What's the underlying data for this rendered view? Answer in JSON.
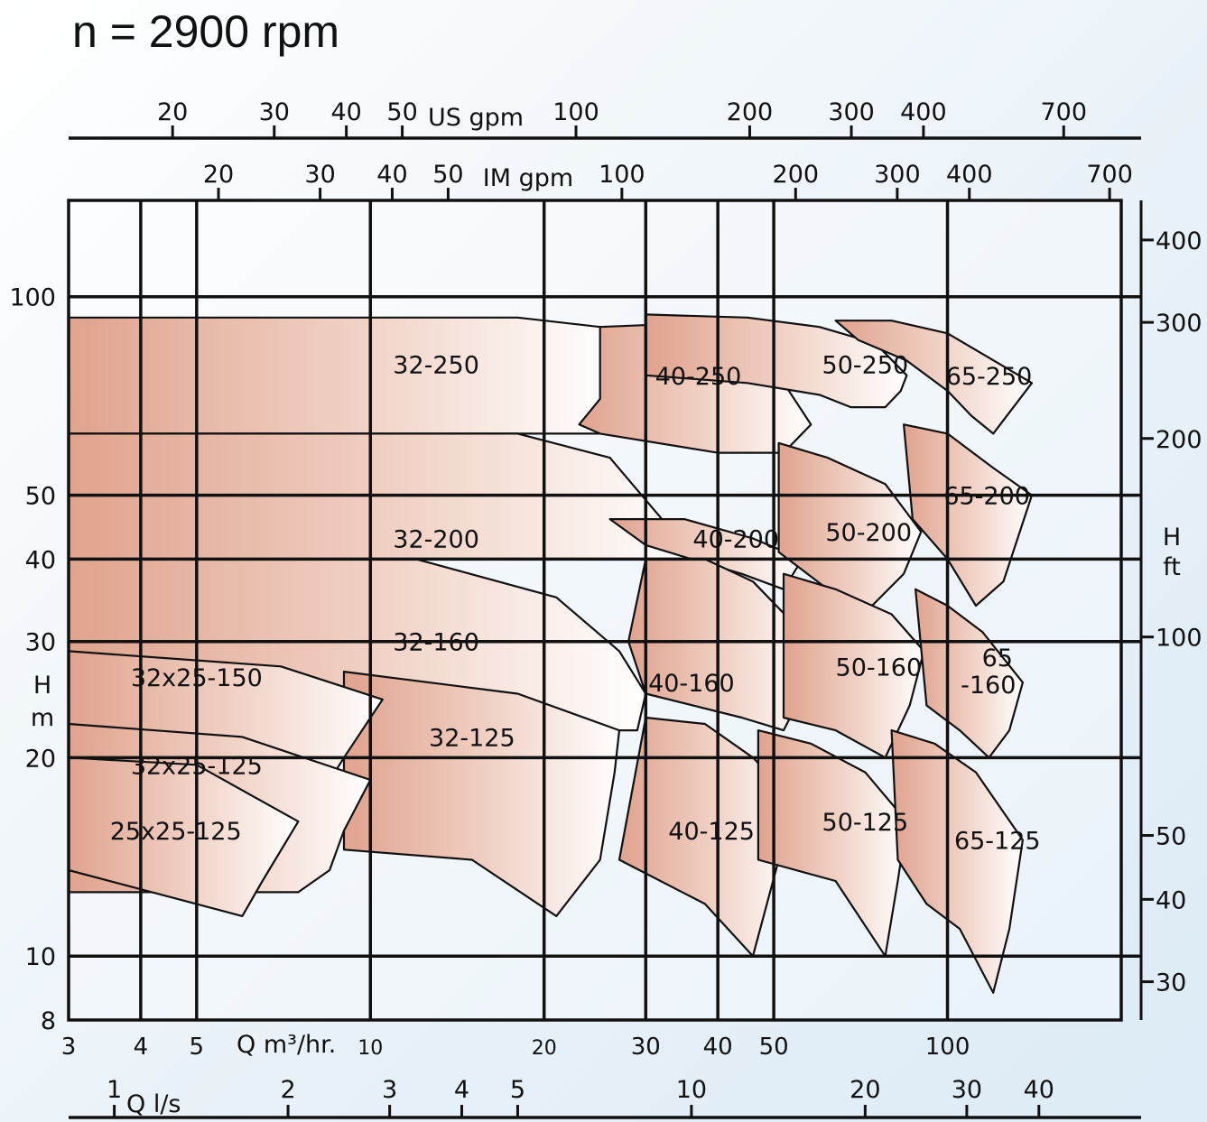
{
  "title": "n = 2900 rpm",
  "chart_data": {
    "type": "area",
    "title": "n = 2900 rpm",
    "x_scale": "log",
    "y_scale": "log",
    "x_label": "Q m³/hr.",
    "y_label": "H m",
    "xlim": [
      3,
      200
    ],
    "ylim": [
      8,
      140
    ],
    "x_ticks": [
      {
        "v": 3,
        "t": "3"
      },
      {
        "v": 4,
        "t": "4"
      },
      {
        "v": 5,
        "t": "5"
      },
      {
        "v": 10,
        "t": "10"
      },
      {
        "v": 20,
        "t": "20"
      },
      {
        "v": 30,
        "t": "30"
      },
      {
        "v": 40,
        "t": "40"
      },
      {
        "v": 50,
        "t": "50"
      },
      {
        "v": 100,
        "t": "100"
      }
    ],
    "y_ticks": [
      {
        "v": 8,
        "t": "8"
      },
      {
        "v": 10,
        "t": "10"
      },
      {
        "v": 20,
        "t": "20"
      },
      {
        "v": 30,
        "t": "30"
      },
      {
        "v": 40,
        "t": "40"
      },
      {
        "v": 50,
        "t": "50"
      },
      {
        "v": 100,
        "t": "100"
      }
    ],
    "y_axis_letters": [
      "H",
      "m"
    ],
    "right_axis": {
      "letters": [
        "H",
        "ft"
      ],
      "ticks": [
        {
          "v": 30,
          "t": "30"
        },
        {
          "v": 40,
          "t": "40"
        },
        {
          "v": 50,
          "t": "50"
        },
        {
          "v": 100,
          "t": "100"
        },
        {
          "v": 200,
          "t": "200"
        },
        {
          "v": 300,
          "t": "300"
        },
        {
          "v": 400,
          "t": "400"
        }
      ]
    },
    "us_gpm_axis": {
      "label": "US gpm",
      "ticks": [
        {
          "v": 20,
          "t": "20"
        },
        {
          "v": 30,
          "t": "30"
        },
        {
          "v": 40,
          "t": "40"
        },
        {
          "v": 50,
          "t": "50"
        },
        {
          "v": 100,
          "t": "100"
        },
        {
          "v": 200,
          "t": "200"
        },
        {
          "v": 300,
          "t": "300"
        },
        {
          "v": 400,
          "t": "400"
        },
        {
          "v": 700,
          "t": "700"
        }
      ]
    },
    "im_gpm_axis": {
      "label": "IM  gpm",
      "ticks": [
        {
          "v": 20,
          "t": "20"
        },
        {
          "v": 30,
          "t": "30"
        },
        {
          "v": 40,
          "t": "40"
        },
        {
          "v": 50,
          "t": "50"
        },
        {
          "v": 100,
          "t": "100"
        },
        {
          "v": 200,
          "t": "200"
        },
        {
          "v": 300,
          "t": "300"
        },
        {
          "v": 400,
          "t": "400"
        },
        {
          "v": 700,
          "t": "700"
        }
      ]
    },
    "ls_axis": {
      "label": "Q l/s",
      "ticks": [
        {
          "v": 1,
          "t": "1"
        },
        {
          "v": 2,
          "t": "2"
        },
        {
          "v": 3,
          "t": "3"
        },
        {
          "v": 4,
          "t": "4"
        },
        {
          "v": 5,
          "t": "5"
        },
        {
          "v": 10,
          "t": "10"
        },
        {
          "v": 20,
          "t": "20"
        },
        {
          "v": 30,
          "t": "30"
        },
        {
          "v": 40,
          "t": "40"
        }
      ]
    },
    "pumps": [
      {
        "name": "32-250",
        "label_at": [
          13,
          79
        ],
        "outline": [
          [
            3,
            93
          ],
          [
            18,
            93
          ],
          [
            25,
            90
          ],
          [
            26,
            62
          ],
          [
            3,
            62
          ]
        ]
      },
      {
        "name": "32-200",
        "label_at": [
          13,
          43
        ],
        "outline": [
          [
            3,
            62
          ],
          [
            18,
            62
          ],
          [
            26,
            57
          ],
          [
            32,
            46
          ],
          [
            36,
            40
          ],
          [
            3,
            40
          ]
        ]
      },
      {
        "name": "32-160",
        "label_at": [
          13,
          30
        ],
        "outline": [
          [
            3,
            40
          ],
          [
            12,
            40
          ],
          [
            21,
            35
          ],
          [
            27,
            29
          ],
          [
            30,
            25
          ],
          [
            29,
            22
          ],
          [
            3,
            22
          ]
        ]
      },
      {
        "name": "32-125",
        "label_at": [
          15,
          21.5
        ],
        "outline": [
          [
            9,
            27
          ],
          [
            18,
            25
          ],
          [
            27,
            22
          ],
          [
            26.5,
            19
          ],
          [
            25,
            14
          ],
          [
            21,
            11.5
          ],
          [
            15,
            14
          ],
          [
            9,
            14.5
          ]
        ]
      },
      {
        "name": "32x25-150",
        "label_at": [
          5,
          26.5
        ],
        "outline": [
          [
            3,
            29
          ],
          [
            7,
            27.5
          ],
          [
            10.5,
            24.5
          ],
          [
            9,
            20
          ],
          [
            7.5,
            15.5
          ],
          [
            6.5,
            13
          ],
          [
            3,
            13
          ]
        ]
      },
      {
        "name": "32x25-125",
        "label_at": [
          5,
          19.5
        ],
        "outline": [
          [
            3,
            22.5
          ],
          [
            6,
            21.5
          ],
          [
            10,
            18.5
          ],
          [
            9,
            15.5
          ],
          [
            8.5,
            13.5
          ],
          [
            7.5,
            12.5
          ],
          [
            3,
            12.5
          ]
        ]
      },
      {
        "name": "25x25-125",
        "label_at": [
          4.6,
          15.5
        ],
        "outline": [
          [
            3,
            20
          ],
          [
            5,
            19.5
          ],
          [
            7.5,
            16
          ],
          [
            6.5,
            13
          ],
          [
            6,
            11.5
          ],
          [
            3,
            13.5
          ]
        ]
      },
      {
        "name": "40-250",
        "label_at": [
          37,
          76
        ],
        "outline": [
          [
            25,
            90
          ],
          [
            34,
            91
          ],
          [
            44,
            86
          ],
          [
            51,
            76
          ],
          [
            58,
            64
          ],
          [
            52,
            58
          ],
          [
            40,
            58
          ],
          [
            25,
            62
          ],
          [
            23,
            64
          ],
          [
            25,
            70
          ]
        ]
      },
      {
        "name": "40-200",
        "label_at": [
          43,
          43
        ],
        "outline": [
          [
            26,
            46
          ],
          [
            35,
            46
          ],
          [
            46,
            43
          ],
          [
            56,
            40
          ],
          [
            52,
            36
          ],
          [
            44,
            38
          ],
          [
            36,
            40
          ],
          [
            30,
            42
          ]
        ]
      },
      {
        "name": "40-160",
        "label_at": [
          36,
          26
        ],
        "outline": [
          [
            30,
            40
          ],
          [
            38,
            40
          ],
          [
            46,
            37
          ],
          [
            58,
            30
          ],
          [
            56,
            25
          ],
          [
            52,
            22
          ],
          [
            44,
            23
          ],
          [
            30,
            25
          ],
          [
            28,
            30
          ]
        ]
      },
      {
        "name": "40-125",
        "label_at": [
          39,
          15.5
        ],
        "outline": [
          [
            30,
            23
          ],
          [
            38,
            22.5
          ],
          [
            46,
            20
          ],
          [
            55,
            17
          ],
          [
            51,
            14
          ],
          [
            46,
            10
          ],
          [
            38,
            12
          ],
          [
            27,
            14
          ]
        ]
      },
      {
        "name": "50-250",
        "label_at": [
          72,
          79
        ],
        "outline": [
          [
            30,
            94
          ],
          [
            45,
            93
          ],
          [
            60,
            90
          ],
          [
            75,
            85
          ],
          [
            85,
            76
          ],
          [
            83,
            72
          ],
          [
            78,
            68
          ],
          [
            68,
            68
          ],
          [
            60,
            71
          ],
          [
            45,
            74
          ],
          [
            30,
            76
          ]
        ]
      },
      {
        "name": "50-200",
        "label_at": [
          73,
          44
        ],
        "outline": [
          [
            51,
            60
          ],
          [
            62,
            57
          ],
          [
            78,
            52
          ],
          [
            90,
            44
          ],
          [
            84,
            38
          ],
          [
            74,
            34
          ],
          [
            62,
            36
          ],
          [
            51,
            41
          ]
        ]
      },
      {
        "name": "50-160",
        "label_at": [
          76,
          27.5
        ],
        "outline": [
          [
            52,
            38
          ],
          [
            64,
            36
          ],
          [
            80,
            33
          ],
          [
            91,
            29
          ],
          [
            86,
            24
          ],
          [
            78,
            20
          ],
          [
            64,
            22
          ],
          [
            52,
            23
          ]
        ]
      },
      {
        "name": "50-125",
        "label_at": [
          72,
          16
        ],
        "outline": [
          [
            47,
            22
          ],
          [
            58,
            21
          ],
          [
            72,
            19
          ],
          [
            85,
            16
          ],
          [
            82,
            13
          ],
          [
            78,
            10
          ],
          [
            64,
            13
          ],
          [
            47,
            14
          ]
        ]
      },
      {
        "name": "65-250",
        "label_at": [
          118,
          76
        ],
        "outline": [
          [
            64,
            92
          ],
          [
            80,
            92
          ],
          [
            100,
            88
          ],
          [
            140,
            74
          ],
          [
            120,
            62
          ],
          [
            110,
            66
          ],
          [
            100,
            72
          ],
          [
            85,
            80
          ],
          [
            70,
            86
          ]
        ]
      },
      {
        "name": "65-200",
        "label_at": [
          117,
          50
        ],
        "outline": [
          [
            84,
            64
          ],
          [
            100,
            62
          ],
          [
            120,
            55
          ],
          [
            140,
            50
          ],
          [
            125,
            37
          ],
          [
            112,
            34
          ],
          [
            100,
            40
          ],
          [
            87,
            46
          ]
        ]
      },
      {
        "name": "65-160",
        "label_at": [
          122,
          27
        ],
        "outline": [
          [
            88,
            36
          ],
          [
            100,
            34
          ],
          [
            115,
            31
          ],
          [
            135,
            26
          ],
          [
            128,
            22
          ],
          [
            118,
            20
          ],
          [
            105,
            22
          ],
          [
            92,
            24
          ]
        ]
      },
      {
        "name": "65-125",
        "label_at": [
          122,
          15
        ],
        "outline": [
          [
            80,
            22
          ],
          [
            95,
            21
          ],
          [
            112,
            19
          ],
          [
            135,
            15
          ],
          [
            128,
            11
          ],
          [
            120,
            8.8
          ],
          [
            105,
            11
          ],
          [
            92,
            12
          ],
          [
            82,
            14
          ]
        ]
      }
    ]
  }
}
